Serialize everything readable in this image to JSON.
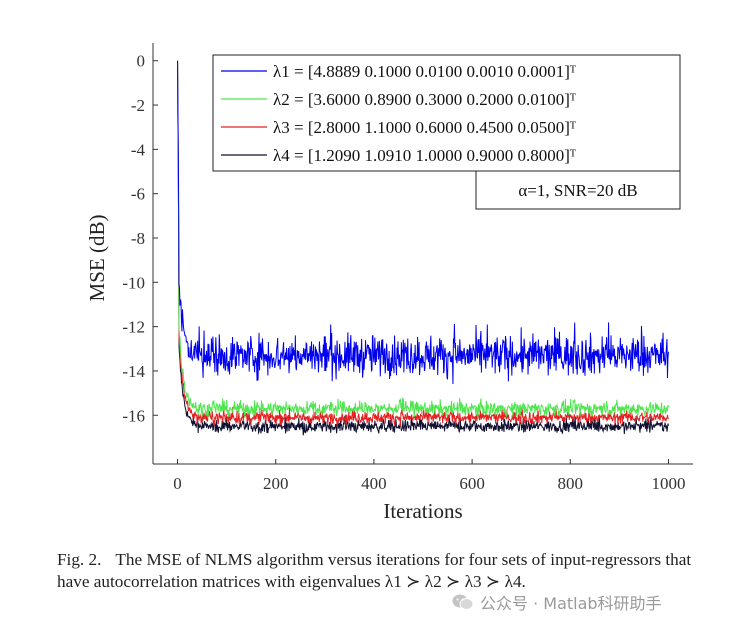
{
  "chart_data": {
    "type": "line",
    "xlabel": "Iterations",
    "ylabel": "MSE (dB)",
    "xlim": [
      -50,
      1050
    ],
    "ylim": [
      -18.2,
      0.8
    ],
    "xticks": [
      0,
      200,
      400,
      600,
      800,
      1000
    ],
    "yticks": [
      0,
      -2,
      -4,
      -6,
      -8,
      -10,
      -12,
      -14,
      -16
    ],
    "xtick_labels": [
      "0",
      "200",
      "400",
      "600",
      "800",
      "1000"
    ],
    "ytick_labels": [
      "0",
      "-2",
      "-4",
      "-6",
      "-8",
      "-10",
      "-12",
      "-14",
      "-16"
    ],
    "grid": false,
    "legend_position": "top-right",
    "annotation": "α=1, SNR=20 dB",
    "series": [
      {
        "name": "λ1 = [4.8889 0.1000 0.0100 0.0010 0.0001]ᵀ",
        "color": "#0000ee",
        "start": 0,
        "initial_drop_to": -10.2,
        "steady_state": -13.3,
        "noise": 0.45,
        "spike_max": -11.8
      },
      {
        "name": "λ2 = [3.6000 0.8900 0.3000 0.2000 0.0100]ᵀ",
        "color": "#4ee64e",
        "start": 0,
        "initial_drop_to": -12.0,
        "steady_state": -15.7,
        "noise": 0.16,
        "spike_max": -15.2
      },
      {
        "name": "λ3 = [2.8000 1.1000 0.6000 0.4500 0.0500]ᵀ",
        "color": "#e62020",
        "start": 0,
        "initial_drop_to": -12.5,
        "steady_state": -16.1,
        "noise": 0.14,
        "spike_max": -15.6
      },
      {
        "name": "λ4 = [1.2090 1.0910 1.0000 0.9000 0.8000]ᵀ",
        "color": "#101030",
        "start": 0,
        "initial_drop_to": -13.0,
        "steady_state": -16.5,
        "noise": 0.14,
        "spike_max": -16.0
      }
    ]
  },
  "caption": {
    "label": "Fig. 2.",
    "text": "The MSE of NLMS algorithm versus iterations for four sets of input-regressors that have autocorrelation matrices with eigenvalues λ1 ≻ λ2 ≻ λ3 ≻ λ4."
  },
  "watermark": {
    "text": "公众号 · Matlab科研助手",
    "icon": "wechat-icon"
  }
}
